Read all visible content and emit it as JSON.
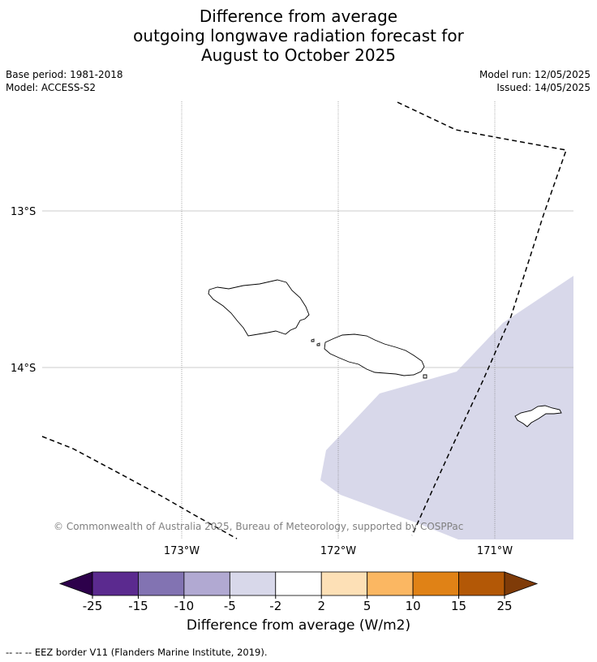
{
  "title": {
    "line1": "Difference from average",
    "line2": "outgoing longwave radiation forecast for",
    "line3": "August to October 2025"
  },
  "meta": {
    "base_period": "Base period: 1981-2018",
    "model": "Model: ACCESS-S2",
    "model_run": "Model run: 12/05/2025",
    "issued": "Issued: 14/05/2025"
  },
  "map": {
    "lat_labels": [
      "13°S",
      "14°S"
    ],
    "lon_labels": [
      "173°W",
      "172°W",
      "171°W"
    ],
    "copyright": "© Commonwealth of Australia 2025, Bureau of Meteorology, supported by COSPPac",
    "anomaly_fill_color": "#d8d8ea",
    "coast_color": "#000000"
  },
  "colorbar": {
    "tick_labels": [
      "-25",
      "-15",
      "-10",
      "-5",
      "-2",
      "2",
      "5",
      "10",
      "15",
      "25"
    ],
    "colors": [
      "#2d004b",
      "#5b2a8f",
      "#8273b2",
      "#b1a9d2",
      "#d8d8ea",
      "#ffffff",
      "#fde0b6",
      "#fbb762",
      "#e08216",
      "#b35806",
      "#7f3b08"
    ],
    "label": "Difference from average (W/m2)"
  },
  "footer": {
    "legend_text": "--  --  -- EEZ border V11 (Flanders Marine Institute, 2019)."
  }
}
